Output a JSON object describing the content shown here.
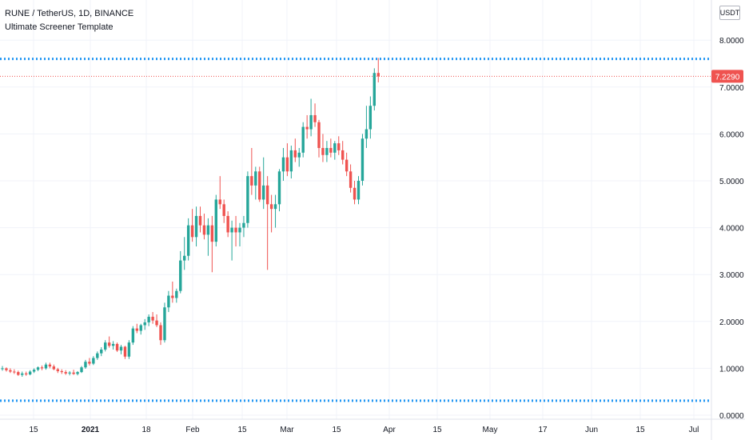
{
  "header": {
    "symbol_line": "RUNE / TetherUS, 1D, BINANCE",
    "indicator": "Ultimate Screener Template"
  },
  "currency_button": "USDT",
  "colors": {
    "up": "#26a69a",
    "down": "#ef5350",
    "level_line": "#2196f3",
    "price_line": "#ef5350",
    "grid": "#f0f3fa",
    "axis_text": "#131722"
  },
  "chart_data": {
    "type": "candlestick",
    "title": "",
    "ylim": [
      0,
      8.5
    ],
    "y_ticks": [
      {
        "value": 0,
        "label": "0.0000"
      },
      {
        "value": 1,
        "label": "1.0000"
      },
      {
        "value": 2,
        "label": "2.0000"
      },
      {
        "value": 3,
        "label": "3.0000"
      },
      {
        "value": 4,
        "label": "4.0000"
      },
      {
        "value": 5,
        "label": "5.0000"
      },
      {
        "value": 6,
        "label": "6.0000"
      },
      {
        "value": 7,
        "label": "7.0000"
      },
      {
        "value": 8,
        "label": "8.0000"
      }
    ],
    "x_ticks": [
      "15",
      "2021",
      "18",
      "Feb",
      "15",
      "Mar",
      "15",
      "Apr",
      "15",
      "May",
      "17",
      "Jun",
      "15",
      "Jul"
    ],
    "last_price": 7.229,
    "last_price_label": "7.2290",
    "horizontal_levels": [
      7.6,
      0.31
    ],
    "ohlc": [
      [
        1.0,
        1.05,
        0.95,
        1.0
      ],
      [
        1.0,
        1.02,
        0.93,
        0.96
      ],
      [
        0.96,
        1.0,
        0.9,
        0.93
      ],
      [
        0.93,
        0.98,
        0.88,
        0.92
      ],
      [
        0.92,
        0.95,
        0.84,
        0.86
      ],
      [
        0.86,
        0.93,
        0.82,
        0.89
      ],
      [
        0.89,
        0.93,
        0.84,
        0.87
      ],
      [
        0.87,
        0.96,
        0.85,
        0.93
      ],
      [
        0.93,
        1.0,
        0.9,
        0.97
      ],
      [
        0.97,
        1.04,
        0.94,
        1.02
      ],
      [
        1.02,
        1.06,
        0.96,
        1.0
      ],
      [
        1.0,
        1.12,
        0.97,
        1.08
      ],
      [
        1.08,
        1.12,
        1.0,
        1.04
      ],
      [
        1.04,
        1.08,
        0.96,
        0.98
      ],
      [
        0.98,
        1.01,
        0.9,
        0.94
      ],
      [
        0.94,
        0.98,
        0.88,
        0.92
      ],
      [
        0.92,
        0.96,
        0.86,
        0.89
      ],
      [
        0.89,
        0.94,
        0.85,
        0.91
      ],
      [
        0.91,
        0.97,
        0.86,
        0.88
      ],
      [
        0.88,
        0.94,
        0.85,
        0.92
      ],
      [
        0.92,
        1.05,
        0.9,
        1.02
      ],
      [
        1.02,
        1.18,
        0.99,
        1.14
      ],
      [
        1.14,
        1.22,
        1.06,
        1.1
      ],
      [
        1.1,
        1.26,
        1.07,
        1.22
      ],
      [
        1.22,
        1.36,
        1.18,
        1.32
      ],
      [
        1.32,
        1.45,
        1.26,
        1.4
      ],
      [
        1.4,
        1.6,
        1.36,
        1.55
      ],
      [
        1.55,
        1.68,
        1.44,
        1.48
      ],
      [
        1.48,
        1.58,
        1.4,
        1.52
      ],
      [
        1.52,
        1.55,
        1.35,
        1.38
      ],
      [
        1.38,
        1.5,
        1.3,
        1.46
      ],
      [
        1.46,
        1.48,
        1.2,
        1.25
      ],
      [
        1.25,
        1.6,
        1.2,
        1.55
      ],
      [
        1.55,
        1.9,
        1.5,
        1.85
      ],
      [
        1.85,
        1.95,
        1.75,
        1.8
      ],
      [
        1.8,
        1.95,
        1.72,
        1.92
      ],
      [
        1.92,
        2.05,
        1.82,
        1.98
      ],
      [
        1.98,
        2.15,
        1.9,
        2.1
      ],
      [
        2.1,
        2.2,
        1.95,
        2.02
      ],
      [
        2.02,
        2.15,
        1.88,
        1.92
      ],
      [
        1.92,
        1.98,
        1.5,
        1.6
      ],
      [
        1.6,
        2.4,
        1.55,
        2.3
      ],
      [
        2.3,
        2.65,
        2.2,
        2.55
      ],
      [
        2.55,
        2.85,
        2.4,
        2.5
      ],
      [
        2.5,
        2.7,
        2.4,
        2.65
      ],
      [
        2.65,
        3.5,
        2.6,
        3.3
      ],
      [
        3.3,
        3.8,
        3.1,
        3.4
      ],
      [
        3.4,
        4.2,
        3.3,
        4.05
      ],
      [
        4.05,
        4.4,
        3.7,
        3.8
      ],
      [
        3.8,
        4.45,
        3.6,
        4.25
      ],
      [
        4.25,
        4.45,
        3.9,
        4.05
      ],
      [
        4.05,
        4.3,
        3.75,
        3.85
      ],
      [
        3.85,
        4.2,
        3.4,
        4.05
      ],
      [
        4.05,
        4.25,
        3.05,
        3.7
      ],
      [
        3.7,
        4.7,
        3.6,
        4.6
      ],
      [
        4.6,
        5.1,
        4.4,
        4.5
      ],
      [
        4.5,
        4.6,
        4.1,
        4.25
      ],
      [
        4.25,
        4.35,
        3.8,
        3.9
      ],
      [
        3.9,
        4.15,
        3.3,
        4.0
      ],
      [
        4.0,
        4.25,
        3.6,
        3.9
      ],
      [
        3.9,
        4.1,
        3.6,
        4.0
      ],
      [
        4.0,
        4.25,
        3.8,
        4.1
      ],
      [
        4.1,
        5.2,
        4.0,
        5.1
      ],
      [
        5.1,
        5.7,
        4.7,
        4.9
      ],
      [
        4.9,
        5.3,
        4.6,
        5.2
      ],
      [
        5.2,
        5.3,
        4.55,
        4.6
      ],
      [
        4.6,
        5.5,
        4.4,
        4.9
      ],
      [
        4.9,
        5.1,
        3.1,
        4.5
      ],
      [
        4.5,
        4.7,
        3.9,
        4.4
      ],
      [
        4.4,
        4.7,
        4.0,
        4.5
      ],
      [
        4.5,
        5.25,
        4.35,
        5.2
      ],
      [
        5.2,
        5.7,
        5.0,
        5.5
      ],
      [
        5.5,
        5.8,
        5.1,
        5.2
      ],
      [
        5.2,
        5.75,
        5.05,
        5.65
      ],
      [
        5.65,
        5.9,
        5.4,
        5.5
      ],
      [
        5.5,
        5.7,
        5.3,
        5.6
      ],
      [
        5.6,
        6.25,
        5.5,
        6.15
      ],
      [
        6.15,
        6.4,
        5.9,
        6.1
      ],
      [
        6.1,
        6.75,
        5.95,
        6.4
      ],
      [
        6.4,
        6.65,
        6.15,
        6.25
      ],
      [
        6.25,
        6.3,
        5.5,
        5.7
      ],
      [
        5.7,
        6.0,
        5.4,
        5.55
      ],
      [
        5.55,
        5.85,
        5.4,
        5.7
      ],
      [
        5.7,
        5.9,
        5.5,
        5.6
      ],
      [
        5.6,
        5.85,
        5.45,
        5.8
      ],
      [
        5.8,
        5.95,
        5.55,
        5.65
      ],
      [
        5.65,
        5.85,
        5.35,
        5.45
      ],
      [
        5.45,
        5.6,
        5.1,
        5.2
      ],
      [
        5.2,
        5.35,
        4.75,
        4.85
      ],
      [
        4.85,
        5.0,
        4.5,
        4.6
      ],
      [
        4.6,
        5.1,
        4.5,
        5.0
      ],
      [
        5.0,
        6.0,
        4.9,
        5.9
      ],
      [
        5.9,
        6.6,
        5.7,
        6.1
      ],
      [
        6.1,
        6.8,
        5.9,
        6.6
      ],
      [
        6.6,
        7.4,
        6.5,
        7.3
      ],
      [
        7.3,
        7.62,
        7.1,
        7.23
      ]
    ]
  }
}
